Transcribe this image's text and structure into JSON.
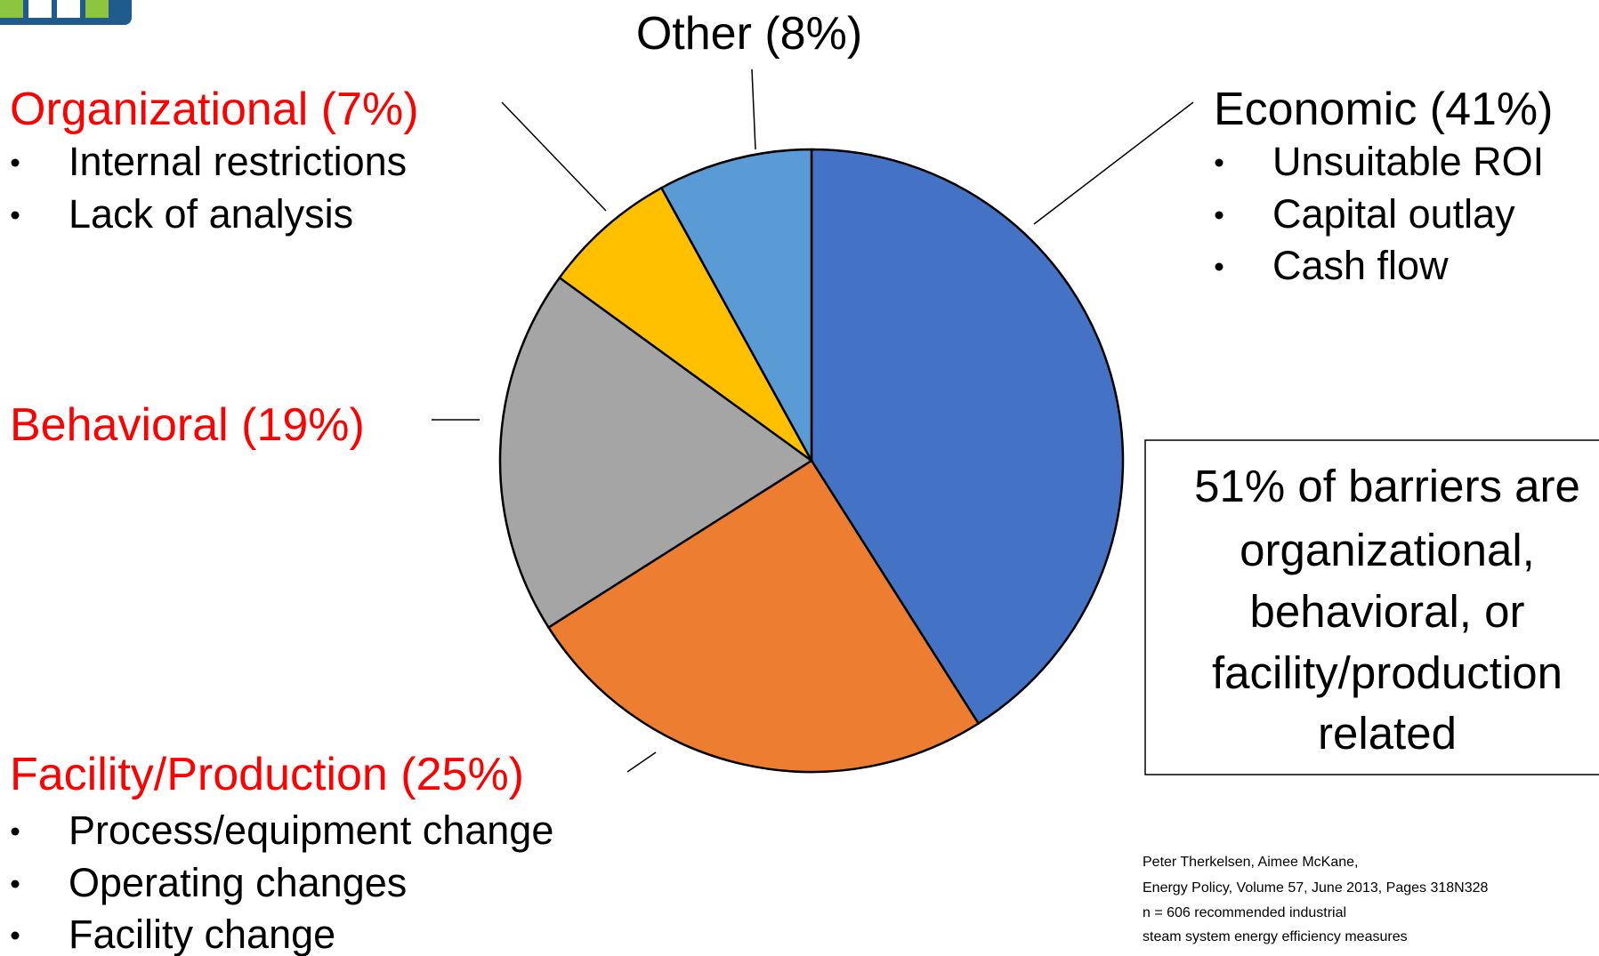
{
  "chart_data": {
    "type": "pie",
    "categories": [
      "Economic (41%)",
      "Facility/Production (25%)",
      "Behavioral (19%)",
      "Organizational (7%)",
      "Other (8%)"
    ],
    "values": [
      41,
      25,
      19,
      7,
      8
    ],
    "colors": [
      "#4472c4",
      "#ed7d31",
      "#a5a5a5",
      "#ffc000",
      "#5b9bd5"
    ],
    "label_colors": [
      "#000000",
      "#ff0000",
      "#ff0000",
      "#ff0000",
      "#000000"
    ],
    "bullets": [
      [
        "Unsuitable ROI",
        "Capital outlay",
        "Cash flow"
      ],
      [
        "Process/equipment change",
        "Operating changes",
        "Facility change"
      ],
      [],
      [
        "Internal restrictions",
        "Lack of analysis"
      ],
      []
    ],
    "note": [
      "51% of barriers are",
      "organizational,",
      "behavioral, or",
      "facility/production",
      "related"
    ],
    "source": [
      "Peter Therkelsen, Aimee McKane,",
      "Energy Policy, Volume 57, June 2013, Pages 318N328",
      "n = 606 recommended industrial",
      "steam system energy efficiency measures"
    ]
  }
}
